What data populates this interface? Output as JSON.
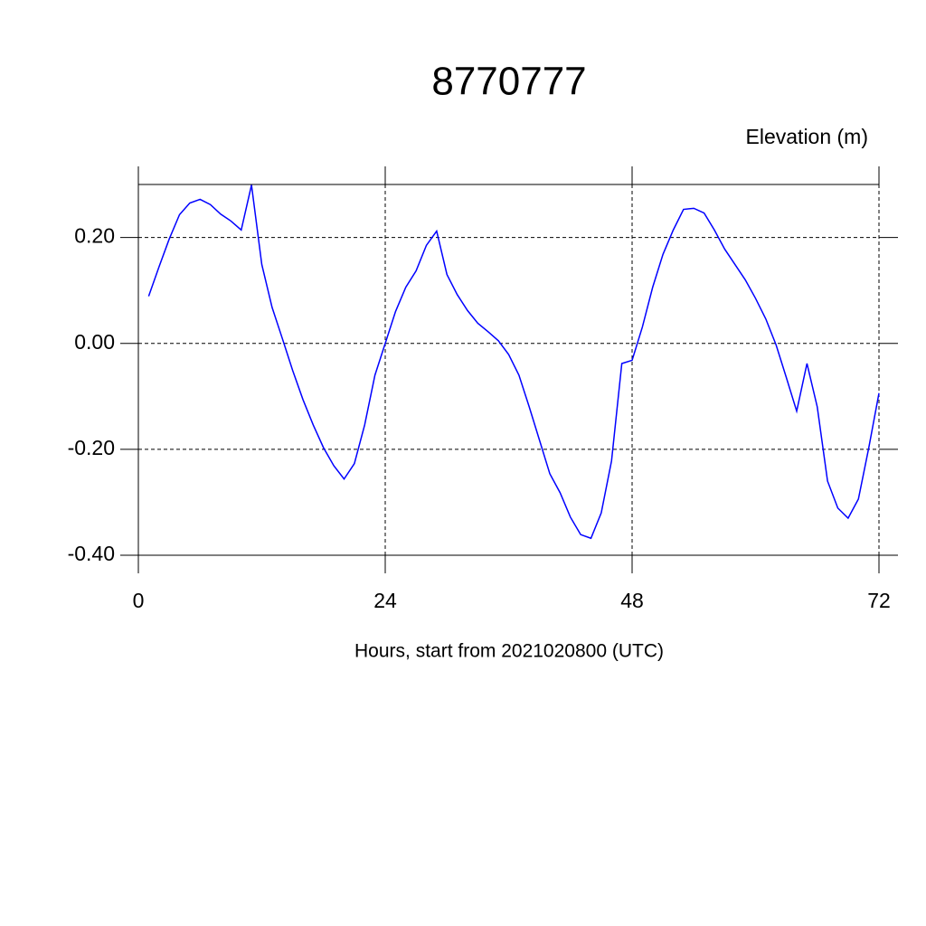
{
  "chart_data": {
    "type": "line",
    "title": "8770777",
    "subtitle": "Elevation (m)",
    "x_label": "Hours, start from 2021020800 (UTC)",
    "x": [
      1,
      2,
      3,
      4,
      5,
      6,
      7,
      8,
      9,
      10,
      11,
      12,
      13,
      14,
      15,
      16,
      17,
      18,
      19,
      20,
      21,
      22,
      23,
      24,
      25,
      26,
      27,
      28,
      29,
      30,
      31,
      32,
      33,
      34,
      35,
      36,
      37,
      38,
      39,
      40,
      41,
      42,
      43,
      44,
      45,
      46,
      47,
      48,
      49,
      50,
      51,
      52,
      53,
      54,
      55,
      56,
      57,
      58,
      59,
      60,
      61,
      62,
      63,
      64,
      65,
      66,
      67,
      68,
      69,
      70,
      71,
      72
    ],
    "series": [
      {
        "color": "#0000ff",
        "values": [
          0.089,
          0.144,
          0.197,
          0.243,
          0.265,
          0.272,
          0.262,
          0.244,
          0.231,
          0.214,
          0.299,
          0.149,
          0.068,
          0.009,
          -0.051,
          -0.106,
          -0.154,
          -0.197,
          -0.231,
          -0.256,
          -0.227,
          -0.154,
          -0.06,
          0.0,
          0.06,
          0.106,
          0.137,
          0.185,
          0.212,
          0.13,
          0.092,
          0.062,
          0.038,
          0.022,
          0.005,
          -0.021,
          -0.06,
          -0.12,
          -0.183,
          -0.246,
          -0.282,
          -0.328,
          -0.361,
          -0.368,
          -0.32,
          -0.222,
          -0.038,
          -0.032,
          0.031,
          0.106,
          0.168,
          0.214,
          0.253,
          0.255,
          0.246,
          0.214,
          0.178,
          0.149,
          0.12,
          0.085,
          0.046,
          -0.003,
          -0.065,
          -0.128,
          -0.038,
          -0.12,
          -0.26,
          -0.311,
          -0.33,
          -0.294,
          -0.198,
          -0.094
        ]
      }
    ],
    "xlim": [
      0,
      72
    ],
    "xticks": [
      0,
      24,
      48,
      72
    ],
    "ylim": [
      -0.4,
      0.3
    ],
    "yticks": [
      {
        "value": -0.4,
        "label": "-0.40"
      },
      {
        "value": -0.2,
        "label": "-0.20"
      },
      {
        "value": 0,
        "label": "0.00"
      },
      {
        "value": 0.2,
        "label": "0.20"
      }
    ],
    "grid": true
  }
}
